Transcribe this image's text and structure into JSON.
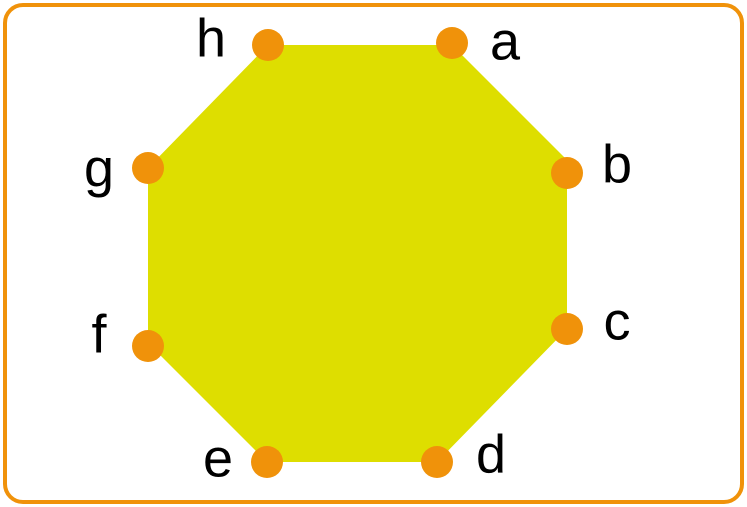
{
  "diagram": {
    "shape": "regular octagon",
    "vertices": [
      {
        "id": "a",
        "label": "a"
      },
      {
        "id": "b",
        "label": "b"
      },
      {
        "id": "c",
        "label": "c"
      },
      {
        "id": "d",
        "label": "d"
      },
      {
        "id": "e",
        "label": "e"
      },
      {
        "id": "f",
        "label": "f"
      },
      {
        "id": "g",
        "label": "g"
      },
      {
        "id": "h",
        "label": "h"
      }
    ]
  },
  "colors": {
    "frame": "#F0920A",
    "fill": "#DEDE00",
    "vertex": "#F0920A",
    "text": "#000000"
  }
}
